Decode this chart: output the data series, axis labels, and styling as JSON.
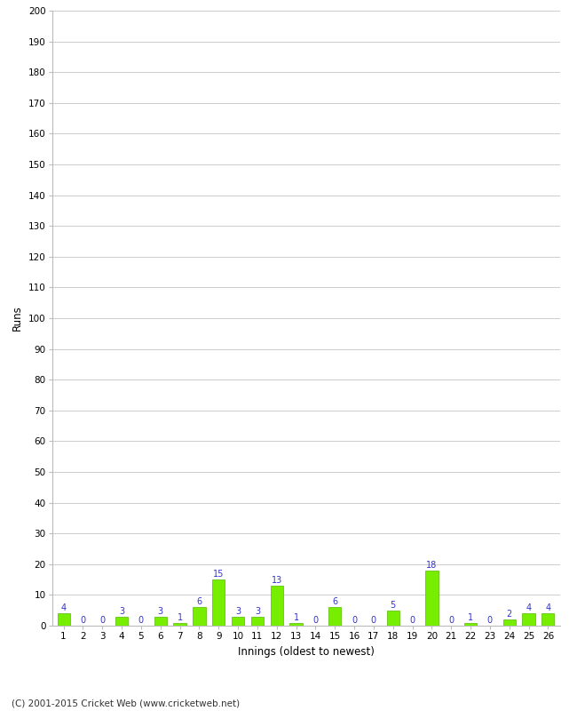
{
  "innings": [
    1,
    2,
    3,
    4,
    5,
    6,
    7,
    8,
    9,
    10,
    11,
    12,
    13,
    14,
    15,
    16,
    17,
    18,
    19,
    20,
    21,
    22,
    23,
    24,
    25,
    26
  ],
  "runs": [
    4,
    0,
    0,
    3,
    0,
    3,
    1,
    6,
    15,
    3,
    3,
    13,
    1,
    0,
    6,
    0,
    0,
    5,
    0,
    18,
    0,
    1,
    0,
    2,
    4,
    4
  ],
  "bar_color": "#77ee00",
  "bar_edge_color": "#55bb00",
  "label_color": "#3333cc",
  "ylabel": "Runs",
  "xlabel": "Innings (oldest to newest)",
  "ylim": [
    0,
    200
  ],
  "yticks": [
    0,
    10,
    20,
    30,
    40,
    50,
    60,
    70,
    80,
    90,
    100,
    110,
    120,
    130,
    140,
    150,
    160,
    170,
    180,
    190,
    200
  ],
  "footer": "(C) 2001-2015 Cricket Web (www.cricketweb.net)",
  "background_color": "#ffffff",
  "grid_color": "#cccccc",
  "label_fontsize": 7,
  "axis_fontsize": 7.5,
  "footer_fontsize": 7.5,
  "bar_width": 0.65
}
